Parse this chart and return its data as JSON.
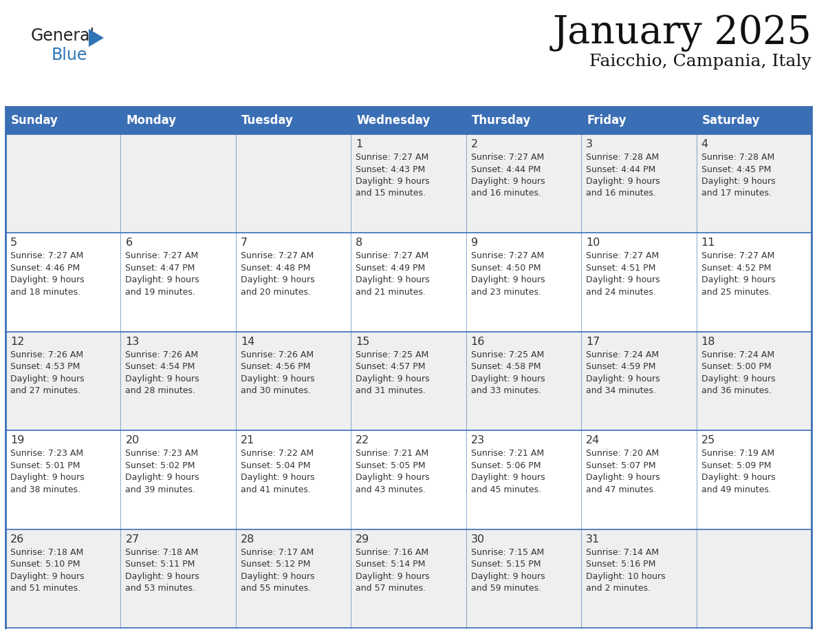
{
  "title": "January 2025",
  "subtitle": "Faicchio, Campania, Italy",
  "days_of_week": [
    "Sunday",
    "Monday",
    "Tuesday",
    "Wednesday",
    "Thursday",
    "Friday",
    "Saturday"
  ],
  "header_bg": "#3A6EB5",
  "header_text_color": "#FFFFFF",
  "row_bg_odd": "#EFEFEF",
  "row_bg_even": "#FFFFFF",
  "cell_text_color": "#333333",
  "grid_line_color": "#3A6EB5",
  "background_color": "#FFFFFF",
  "logo_general_color": "#222222",
  "logo_blue_color": "#2E75B6",
  "title_color": "#111111",
  "subtitle_color": "#111111",
  "calendar_data": [
    [
      null,
      null,
      null,
      {
        "day": 1,
        "sunrise": "7:27 AM",
        "sunset": "4:43 PM",
        "daylight": "9 hours and 15 minutes."
      },
      {
        "day": 2,
        "sunrise": "7:27 AM",
        "sunset": "4:44 PM",
        "daylight": "9 hours and 16 minutes."
      },
      {
        "day": 3,
        "sunrise": "7:28 AM",
        "sunset": "4:44 PM",
        "daylight": "9 hours and 16 minutes."
      },
      {
        "day": 4,
        "sunrise": "7:28 AM",
        "sunset": "4:45 PM",
        "daylight": "9 hours and 17 minutes."
      }
    ],
    [
      {
        "day": 5,
        "sunrise": "7:27 AM",
        "sunset": "4:46 PM",
        "daylight": "9 hours and 18 minutes."
      },
      {
        "day": 6,
        "sunrise": "7:27 AM",
        "sunset": "4:47 PM",
        "daylight": "9 hours and 19 minutes."
      },
      {
        "day": 7,
        "sunrise": "7:27 AM",
        "sunset": "4:48 PM",
        "daylight": "9 hours and 20 minutes."
      },
      {
        "day": 8,
        "sunrise": "7:27 AM",
        "sunset": "4:49 PM",
        "daylight": "9 hours and 21 minutes."
      },
      {
        "day": 9,
        "sunrise": "7:27 AM",
        "sunset": "4:50 PM",
        "daylight": "9 hours and 23 minutes."
      },
      {
        "day": 10,
        "sunrise": "7:27 AM",
        "sunset": "4:51 PM",
        "daylight": "9 hours and 24 minutes."
      },
      {
        "day": 11,
        "sunrise": "7:27 AM",
        "sunset": "4:52 PM",
        "daylight": "9 hours and 25 minutes."
      }
    ],
    [
      {
        "day": 12,
        "sunrise": "7:26 AM",
        "sunset": "4:53 PM",
        "daylight": "9 hours and 27 minutes."
      },
      {
        "day": 13,
        "sunrise": "7:26 AM",
        "sunset": "4:54 PM",
        "daylight": "9 hours and 28 minutes."
      },
      {
        "day": 14,
        "sunrise": "7:26 AM",
        "sunset": "4:56 PM",
        "daylight": "9 hours and 30 minutes."
      },
      {
        "day": 15,
        "sunrise": "7:25 AM",
        "sunset": "4:57 PM",
        "daylight": "9 hours and 31 minutes."
      },
      {
        "day": 16,
        "sunrise": "7:25 AM",
        "sunset": "4:58 PM",
        "daylight": "9 hours and 33 minutes."
      },
      {
        "day": 17,
        "sunrise": "7:24 AM",
        "sunset": "4:59 PM",
        "daylight": "9 hours and 34 minutes."
      },
      {
        "day": 18,
        "sunrise": "7:24 AM",
        "sunset": "5:00 PM",
        "daylight": "9 hours and 36 minutes."
      }
    ],
    [
      {
        "day": 19,
        "sunrise": "7:23 AM",
        "sunset": "5:01 PM",
        "daylight": "9 hours and 38 minutes."
      },
      {
        "day": 20,
        "sunrise": "7:23 AM",
        "sunset": "5:02 PM",
        "daylight": "9 hours and 39 minutes."
      },
      {
        "day": 21,
        "sunrise": "7:22 AM",
        "sunset": "5:04 PM",
        "daylight": "9 hours and 41 minutes."
      },
      {
        "day": 22,
        "sunrise": "7:21 AM",
        "sunset": "5:05 PM",
        "daylight": "9 hours and 43 minutes."
      },
      {
        "day": 23,
        "sunrise": "7:21 AM",
        "sunset": "5:06 PM",
        "daylight": "9 hours and 45 minutes."
      },
      {
        "day": 24,
        "sunrise": "7:20 AM",
        "sunset": "5:07 PM",
        "daylight": "9 hours and 47 minutes."
      },
      {
        "day": 25,
        "sunrise": "7:19 AM",
        "sunset": "5:09 PM",
        "daylight": "9 hours and 49 minutes."
      }
    ],
    [
      {
        "day": 26,
        "sunrise": "7:18 AM",
        "sunset": "5:10 PM",
        "daylight": "9 hours and 51 minutes."
      },
      {
        "day": 27,
        "sunrise": "7:18 AM",
        "sunset": "5:11 PM",
        "daylight": "9 hours and 53 minutes."
      },
      {
        "day": 28,
        "sunrise": "7:17 AM",
        "sunset": "5:12 PM",
        "daylight": "9 hours and 55 minutes."
      },
      {
        "day": 29,
        "sunrise": "7:16 AM",
        "sunset": "5:14 PM",
        "daylight": "9 hours and 57 minutes."
      },
      {
        "day": 30,
        "sunrise": "7:15 AM",
        "sunset": "5:15 PM",
        "daylight": "9 hours and 59 minutes."
      },
      {
        "day": 31,
        "sunrise": "7:14 AM",
        "sunset": "5:16 PM",
        "daylight": "10 hours and 2 minutes."
      },
      null
    ]
  ]
}
